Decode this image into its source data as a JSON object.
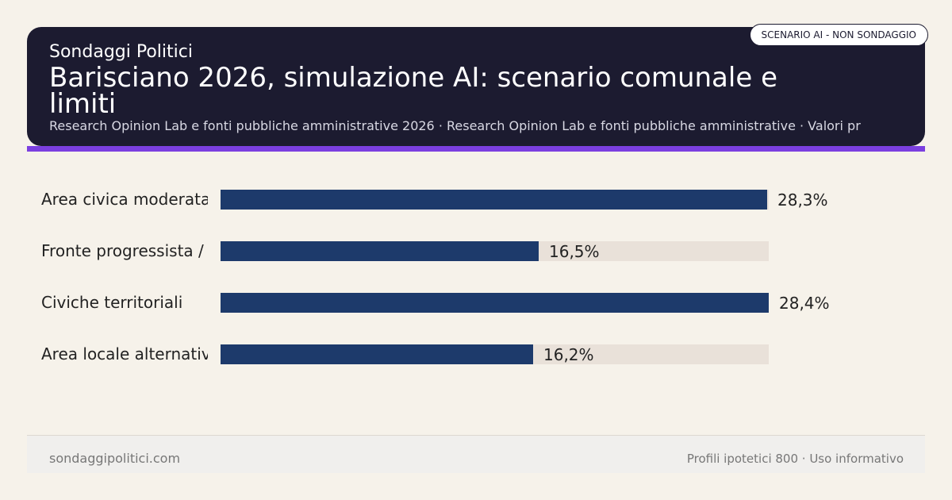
{
  "header": {
    "brand": "Sondaggi Politici",
    "title": "Barisciano 2026, simulazione AI: scenario comunale e limiti",
    "subtitle": "Research Opinion Lab e fonti pubbliche amministrative 2026 · Research Opinion Lab e fonti pubbliche amministrative · Valori pr",
    "badge": "SCENARIO AI - NON SONDAGGIO"
  },
  "colors": {
    "header_bg": "#1c1b30",
    "accent": "#7b3fe0",
    "bar": "#1d3a6b",
    "track": "#e9e1d9",
    "background": "#f6f2ea"
  },
  "chart_data": {
    "type": "bar",
    "orientation": "horizontal",
    "categories": [
      "Area civica moderata",
      "Fronte progressista /",
      "Civiche territoriali",
      "Area locale alternativ"
    ],
    "values": [
      28.3,
      16.5,
      28.4,
      16.2
    ],
    "value_labels": [
      "28,3%",
      "16,5%",
      "28,4%",
      "16,2%"
    ],
    "xlim": [
      0,
      28.4
    ],
    "grid": false
  },
  "footer": {
    "left": "sondaggipolitici.com",
    "right": "Profili ipotetici 800 · Uso informativo"
  }
}
